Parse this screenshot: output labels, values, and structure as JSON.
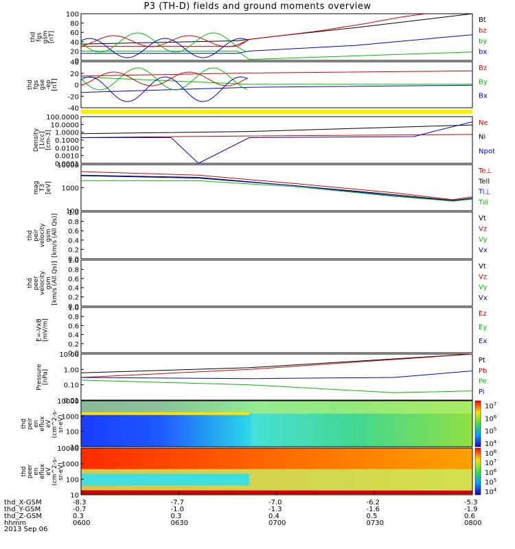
{
  "title": "P3 (TH-D) fields and ground moments overview",
  "date": "2013 Sep 06",
  "chart_data": [
    {
      "type": "line",
      "ylabel": [
        "thd",
        "fgs",
        "gsm",
        "[nT]"
      ],
      "yticks": [
        "100",
        "80",
        "60",
        "40",
        "20",
        "0"
      ],
      "ylim": [
        0,
        100
      ],
      "legend": [
        {
          "name": "Bt",
          "color": "#000000"
        },
        {
          "name": "bz",
          "color": "#cc0000"
        },
        {
          "name": "by",
          "color": "#00bb00"
        },
        {
          "name": "bx",
          "color": "#0000cc"
        }
      ],
      "series": [
        {
          "name": "Bt",
          "color": "#000000",
          "x": [
            0,
            0.4,
            0.43,
            0.5,
            0.7,
            0.85,
            1
          ],
          "y": [
            35,
            42,
            45,
            52,
            70,
            85,
            100
          ]
        },
        {
          "name": "bz",
          "color": "#cc0000",
          "x": [
            0,
            0.4,
            0.43,
            0.5,
            0.6,
            0.72,
            0.82,
            0.88
          ],
          "y": [
            30,
            30,
            45,
            52,
            62,
            78,
            93,
            100
          ]
        },
        {
          "name": "by",
          "color": "#00bb00",
          "x": [
            0,
            0.4,
            0.43,
            1
          ],
          "y": [
            20,
            20,
            2,
            18
          ]
        },
        {
          "name": "bx",
          "color": "#0000cc",
          "x": [
            0,
            0.4,
            0.43,
            0.7,
            1
          ],
          "y": [
            15,
            15,
            20,
            32,
            55
          ]
        }
      ]
    },
    {
      "type": "line",
      "ylabel": [
        "thd",
        "fgs",
        "gse",
        "-ep",
        "[nT]"
      ],
      "yticks": [
        "40",
        "20",
        "0",
        "-20",
        "-40"
      ],
      "ylim": [
        -50,
        40
      ],
      "legend": [
        {
          "name": "Bz",
          "color": "#cc0000"
        },
        {
          "name": "By",
          "color": "#00bb00"
        },
        {
          "name": "Bx",
          "color": "#0000cc"
        }
      ],
      "series": [
        {
          "name": "Bz",
          "color": "#cc0000",
          "x": [
            0,
            0.43,
            1
          ],
          "y": [
            12,
            18,
            22
          ]
        },
        {
          "name": "By",
          "color": "#00bb00",
          "x": [
            0,
            0.43,
            1
          ],
          "y": [
            10,
            -4,
            -4
          ]
        },
        {
          "name": "Bx",
          "color": "#0000cc",
          "x": [
            0,
            0.43,
            1
          ],
          "y": [
            -20,
            -10,
            -6
          ]
        }
      ]
    },
    {
      "type": "line",
      "ylabel": [
        "Density",
        "[1/cc]",
        "[cm-3]"
      ],
      "yticks": [
        "100.0000",
        "10.0000",
        "1.0000",
        "0.1000",
        "0.0100",
        "0.0010",
        "0.0001"
      ],
      "log": true,
      "ylim": [
        0.0001,
        200
      ],
      "legend": [
        {
          "name": "Ne",
          "color": "#cc0000"
        },
        {
          "name": "Ni",
          "color": "#000000"
        },
        {
          "name": "Npot",
          "color": "#0000cc"
        }
      ],
      "series": [
        {
          "name": "Ne",
          "color": "#cc0000",
          "x": [
            0,
            0.43,
            1
          ],
          "y": [
            0.3,
            0.5,
            0.8
          ]
        },
        {
          "name": "Ni",
          "color": "#000000",
          "x": [
            0,
            0.43,
            1
          ],
          "y": [
            1,
            2,
            15
          ]
        },
        {
          "name": "Npot",
          "color": "#0000cc",
          "x": [
            0,
            0.23,
            0.3,
            0.43,
            0.85,
            0.9,
            1
          ],
          "y": [
            0.3,
            0.3,
            0.0001,
            0.3,
            0.4,
            2,
            40
          ]
        }
      ]
    },
    {
      "type": "line",
      "ylabel": [
        "mag",
        "T3",
        "[eV]"
      ],
      "yticks": [
        "10000",
        "1000",
        "100"
      ],
      "log": true,
      "ylim": [
        100,
        10000
      ],
      "legend": [
        {
          "name": "Te⊥",
          "color": "#cc0000"
        },
        {
          "name": "Tell",
          "color": "#000000"
        },
        {
          "name": "Ti⊥",
          "color": "#0000cc"
        },
        {
          "name": "Till",
          "color": "#00bb00"
        }
      ],
      "series": [
        {
          "name": "Te⊥",
          "color": "#cc0000",
          "x": [
            0,
            0.3,
            0.55,
            0.8,
            0.95,
            1
          ],
          "y": [
            5000,
            3500,
            1500,
            600,
            300,
            400
          ]
        },
        {
          "name": "Tell",
          "color": "#000000",
          "x": [
            0,
            0.3,
            0.55,
            0.8,
            0.95,
            1
          ],
          "y": [
            3500,
            2800,
            1200,
            500,
            280,
            350
          ]
        },
        {
          "name": "Ti⊥",
          "color": "#0000cc",
          "x": [
            0,
            0.3,
            0.55,
            0.8,
            0.95,
            1
          ],
          "y": [
            3300,
            2600,
            1200,
            450,
            270,
            330
          ]
        },
        {
          "name": "Till",
          "color": "#00bb00",
          "x": [
            0,
            0.3,
            0.55,
            0.8,
            0.95,
            1
          ],
          "y": [
            2000,
            2000,
            1100,
            420,
            260,
            320
          ]
        }
      ]
    },
    {
      "type": "line",
      "ylabel": [
        "thd",
        "peir",
        "velocity",
        "gsm",
        "[km/s (All Qs)]"
      ],
      "yticks": [
        "1.0",
        "0.8",
        "0.6",
        "0.4",
        "0.2",
        "0.0"
      ],
      "ylim": [
        0,
        1
      ],
      "legend": [
        {
          "name": "Vt",
          "color": "#000000"
        },
        {
          "name": "Vz",
          "color": "#cc0000"
        },
        {
          "name": "Vy",
          "color": "#00bb00"
        },
        {
          "name": "Vx",
          "color": "#0000cc"
        }
      ],
      "series": []
    },
    {
      "type": "line",
      "ylabel": [
        "thd",
        "peer",
        "velocity",
        "gsm",
        "[km/s (All Qs)]"
      ],
      "yticks": [
        "1.0",
        "0.8",
        "0.6",
        "0.4",
        "0.2",
        "0.0"
      ],
      "ylim": [
        0,
        1
      ],
      "legend": [
        {
          "name": "Vt",
          "color": "#000000"
        },
        {
          "name": "Vz",
          "color": "#cc0000"
        },
        {
          "name": "Vy",
          "color": "#00bb00"
        },
        {
          "name": "Vx",
          "color": "#0000cc"
        }
      ],
      "series": []
    },
    {
      "type": "line",
      "ylabel": [
        "E=-VxB",
        "[mV/m]"
      ],
      "yticks": [
        "1.0",
        "0.8",
        "0.6",
        "0.4",
        "0.2",
        "0.0"
      ],
      "ylim": [
        0,
        1
      ],
      "legend": [
        {
          "name": "Ez",
          "color": "#cc0000"
        },
        {
          "name": "Ey",
          "color": "#00bb00"
        },
        {
          "name": "Ex",
          "color": "#0000cc"
        }
      ],
      "series": []
    },
    {
      "type": "line",
      "ylabel": [
        "Pressure",
        "[nPa]"
      ],
      "yticks": [
        "10.00",
        "1.00",
        "0.10",
        "0.01"
      ],
      "log": true,
      "ylim": [
        0.01,
        10
      ],
      "legend": [
        {
          "name": "Pt",
          "color": "#000000"
        },
        {
          "name": "Pb",
          "color": "#cc0000"
        },
        {
          "name": "Pe",
          "color": "#00bb00"
        },
        {
          "name": "Pi",
          "color": "#0000cc"
        }
      ],
      "series": [
        {
          "name": "Pt",
          "color": "#000000",
          "x": [
            0,
            0.43,
            1
          ],
          "y": [
            0.6,
            1.3,
            10
          ]
        },
        {
          "name": "Pb",
          "color": "#cc0000",
          "x": [
            0,
            0.43,
            1
          ],
          "y": [
            0.3,
            1.0,
            10
          ]
        },
        {
          "name": "Pe",
          "color": "#00bb00",
          "x": [
            0,
            0.43,
            0.8,
            1
          ],
          "y": [
            0.2,
            0.1,
            0.03,
            0.04
          ]
        },
        {
          "name": "Pi",
          "color": "#0000cc",
          "x": [
            0,
            0.43,
            0.8,
            1
          ],
          "y": [
            0.3,
            0.25,
            0.3,
            0.8
          ]
        }
      ]
    },
    {
      "type": "heatmap",
      "ylabel": [
        "thd",
        "peir",
        "en",
        "eflux",
        "eV",
        "(cm^2-s-",
        "sr-eV)"
      ],
      "yticks": [
        "10000",
        "1000",
        "100",
        "10"
      ],
      "colorbar": [
        "10^7",
        "10^6",
        "10^5",
        "10^4"
      ]
    },
    {
      "type": "heatmap",
      "ylabel": [
        "thd",
        "peer",
        "en",
        "eflux",
        "eV",
        "(cm^2-s-",
        "sr-eV)"
      ],
      "yticks": [
        "10000",
        "1000",
        "100",
        "10"
      ],
      "colorbar": [
        "10^8",
        "10^7",
        "10^6",
        "10^5",
        "10^4"
      ]
    }
  ],
  "xaxis": {
    "rows": [
      {
        "label": "thd_X-GSM",
        "values": [
          "-8.3",
          "-7.7",
          "-7.0",
          "-6.2",
          "-5.3"
        ]
      },
      {
        "label": "thd_Y-GSM",
        "values": [
          "-0.7",
          "-1.0",
          "-1.3",
          "-1.6",
          "-1.9"
        ]
      },
      {
        "label": "thd_Z-GSM",
        "values": [
          "0.3",
          "0.3",
          "0.4",
          "0.5",
          "0.6"
        ]
      },
      {
        "label": "hhmm",
        "values": [
          "0600",
          "0630",
          "0700",
          "0730",
          "0800"
        ]
      }
    ]
  }
}
